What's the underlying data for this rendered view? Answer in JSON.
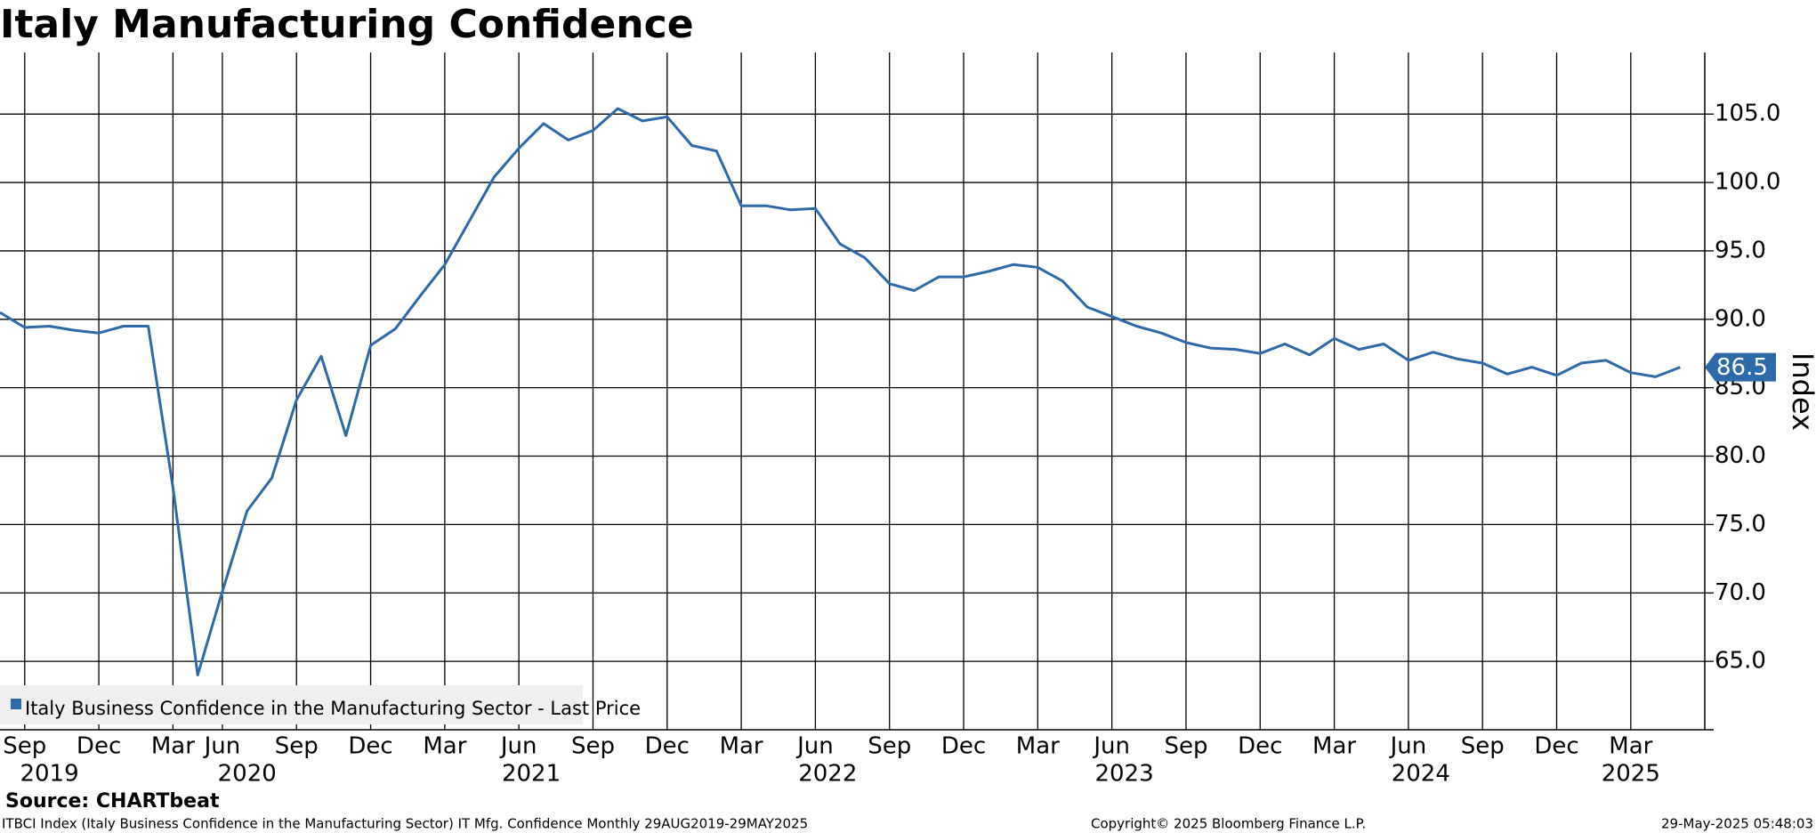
{
  "chart_data": {
    "type": "line",
    "title": "Italy Manufacturing Confidence",
    "x": [
      "2019-08",
      "2019-09",
      "2019-10",
      "2019-11",
      "2019-12",
      "2020-01",
      "2020-02",
      "2020-03",
      "2020-05",
      "2020-06",
      "2020-07",
      "2020-08",
      "2020-09",
      "2020-10",
      "2020-11",
      "2020-12",
      "2021-01",
      "2021-02",
      "2021-03",
      "2021-04",
      "2021-05",
      "2021-06",
      "2021-07",
      "2021-08",
      "2021-09",
      "2021-10",
      "2021-11",
      "2021-12",
      "2022-01",
      "2022-02",
      "2022-03",
      "2022-04",
      "2022-05",
      "2022-06",
      "2022-07",
      "2022-08",
      "2022-09",
      "2022-10",
      "2022-11",
      "2022-12",
      "2023-01",
      "2023-02",
      "2023-03",
      "2023-04",
      "2023-05",
      "2023-06",
      "2023-07",
      "2023-08",
      "2023-09",
      "2023-10",
      "2023-11",
      "2023-12",
      "2024-01",
      "2024-02",
      "2024-03",
      "2024-04",
      "2024-05",
      "2024-06",
      "2024-07",
      "2024-08",
      "2024-09",
      "2024-10",
      "2024-11",
      "2024-12",
      "2025-01",
      "2025-02",
      "2025-03",
      "2025-04",
      "2025-05"
    ],
    "series": [
      {
        "name": "Italy Business Confidence in the Manufacturing Sector - Last Price",
        "color": "#2e6aa8",
        "values": [
          90.5,
          89.4,
          89.5,
          89.2,
          89.0,
          89.5,
          89.5,
          77.7,
          64.0,
          70.1,
          76.0,
          78.4,
          84.1,
          87.3,
          81.5,
          88.1,
          89.3,
          91.7,
          94.0,
          97.2,
          100.4,
          102.5,
          104.3,
          103.1,
          103.8,
          105.4,
          104.5,
          104.8,
          102.7,
          102.3,
          98.3,
          98.3,
          98.0,
          98.1,
          95.5,
          94.5,
          92.6,
          92.1,
          93.1,
          93.1,
          93.5,
          94.0,
          93.8,
          92.8,
          90.9,
          90.2,
          89.5,
          89.0,
          88.3,
          87.9,
          87.8,
          87.5,
          88.2,
          87.4,
          88.6,
          87.8,
          88.2,
          87.0,
          87.6,
          87.1,
          86.8,
          86.0,
          86.5,
          85.9,
          86.8,
          87.0,
          86.1,
          85.8,
          86.5
        ]
      }
    ],
    "last_value_label": "86.5",
    "xticks": [
      {
        "value": "2019-09",
        "label": "Sep"
      },
      {
        "value": "2019-12",
        "label": "Dec"
      },
      {
        "value": "2020-03",
        "label": "Mar"
      },
      {
        "value": "2020-06",
        "label": "Jun"
      },
      {
        "value": "2020-09",
        "label": "Sep"
      },
      {
        "value": "2020-12",
        "label": "Dec"
      },
      {
        "value": "2021-03",
        "label": "Mar"
      },
      {
        "value": "2021-06",
        "label": "Jun"
      },
      {
        "value": "2021-09",
        "label": "Sep"
      },
      {
        "value": "2021-12",
        "label": "Dec"
      },
      {
        "value": "2022-03",
        "label": "Mar"
      },
      {
        "value": "2022-06",
        "label": "Jun"
      },
      {
        "value": "2022-09",
        "label": "Sep"
      },
      {
        "value": "2022-12",
        "label": "Dec"
      },
      {
        "value": "2023-03",
        "label": "Mar"
      },
      {
        "value": "2023-06",
        "label": "Jun"
      },
      {
        "value": "2023-09",
        "label": "Sep"
      },
      {
        "value": "2023-12",
        "label": "Dec"
      },
      {
        "value": "2024-03",
        "label": "Mar"
      },
      {
        "value": "2024-06",
        "label": "Jun"
      },
      {
        "value": "2024-09",
        "label": "Sep"
      },
      {
        "value": "2024-12",
        "label": "Dec"
      },
      {
        "value": "2025-03",
        "label": "Mar"
      }
    ],
    "years": [
      "2019",
      "2020",
      "2021",
      "2022",
      "2023",
      "2024",
      "2025"
    ],
    "ylabel": "Index",
    "ylim": [
      60,
      109.5
    ],
    "yticks": [
      {
        "value": 65,
        "label": "65.0"
      },
      {
        "value": 70,
        "label": "70.0"
      },
      {
        "value": 75,
        "label": "75.0"
      },
      {
        "value": 80,
        "label": "80.0"
      },
      {
        "value": 85,
        "label": "85.0"
      },
      {
        "value": 90,
        "label": "90.0"
      },
      {
        "value": 95,
        "label": "95.0"
      },
      {
        "value": 100,
        "label": "100.0"
      },
      {
        "value": 105,
        "label": "105.0"
      }
    ],
    "grid": true,
    "source": "Source: CHARTbeat",
    "footer_left": "ITBCI Index (Italy Business Confidence in the Manufacturing Sector) IT Mfg. Confidence  Monthly 29AUG2019-29MAY2025",
    "footer_center": "Copyright© 2025 Bloomberg Finance L.P.",
    "footer_right": "29-May-2025 05:48:03"
  }
}
